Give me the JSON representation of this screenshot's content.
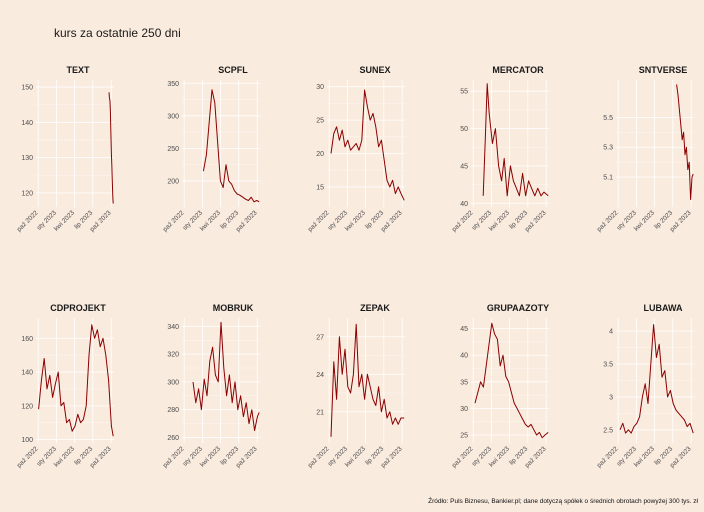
{
  "title": "kurs za ostatnie 250 dni",
  "caption": "Źródło: Puls Biznesu, Bankier.pl; dane dotyczą spółek o średnich obrotach powyżej 300 tys. zł",
  "colors": {
    "line": "#8b0000",
    "background": "#faebdf",
    "grid": "#ffffff"
  },
  "chart_data": [
    {
      "type": "line",
      "title": "TEXT",
      "ylim": [
        116,
        152
      ],
      "yticks": [
        120,
        130,
        140,
        150
      ],
      "xticks": [
        "paź 2022",
        "sty 2023",
        "kwi 2023",
        "lip 2023",
        "paź 2023"
      ],
      "x": [
        "2023-09-20",
        "2023-09-22",
        "2023-09-25",
        "2023-09-27",
        "2023-09-29",
        "2023-10-02",
        "2023-10-04",
        "2023-10-06",
        "2023-10-09",
        "2023-10-11"
      ],
      "y": [
        148.5,
        147,
        146,
        143,
        138,
        131,
        128,
        124,
        119,
        117
      ]
    },
    {
      "type": "line",
      "title": "SCPFL",
      "ylim": [
        160,
        355
      ],
      "yticks": [
        200,
        250,
        300,
        350
      ],
      "xticks": [
        "paź 2022",
        "sty 2023",
        "kwi 2023",
        "lip 2023",
        "paź 2023"
      ],
      "x": [
        "2023-01-05",
        "2023-01-20",
        "2023-02-03",
        "2023-02-17",
        "2023-03-03",
        "2023-03-17",
        "2023-03-31",
        "2023-04-14",
        "2023-04-28",
        "2023-05-12",
        "2023-05-26",
        "2023-06-09",
        "2023-06-23",
        "2023-07-07",
        "2023-07-21",
        "2023-08-04",
        "2023-08-18",
        "2023-09-01",
        "2023-09-15",
        "2023-09-29",
        "2023-10-11"
      ],
      "y": [
        215,
        240,
        290,
        340,
        320,
        260,
        200,
        190,
        225,
        200,
        195,
        185,
        180,
        178,
        175,
        172,
        170,
        175,
        168,
        170,
        168
      ]
    },
    {
      "type": "line",
      "title": "SUNEX",
      "ylim": [
        12,
        31
      ],
      "yticks": [
        15,
        20,
        25,
        30
      ],
      "xticks": [
        "paź 2022",
        "sty 2023",
        "kwi 2023",
        "lip 2023",
        "paź 2023"
      ],
      "x": [
        "2022-10-10",
        "2022-10-24",
        "2022-11-07",
        "2022-11-21",
        "2022-12-05",
        "2022-12-19",
        "2023-01-02",
        "2023-01-16",
        "2023-01-30",
        "2023-02-13",
        "2023-02-27",
        "2023-03-13",
        "2023-03-27",
        "2023-04-10",
        "2023-04-24",
        "2023-05-08",
        "2023-05-22",
        "2023-06-05",
        "2023-06-19",
        "2023-07-03",
        "2023-07-17",
        "2023-07-31",
        "2023-08-14",
        "2023-08-28",
        "2023-09-11",
        "2023-09-25",
        "2023-10-11"
      ],
      "y": [
        20,
        23,
        24,
        22,
        23.5,
        21,
        22,
        20.5,
        21,
        21.5,
        20.5,
        22,
        29.5,
        27,
        25,
        26,
        24,
        21,
        22,
        19,
        16,
        15,
        16,
        14,
        15,
        14,
        13
      ]
    },
    {
      "type": "line",
      "title": "MERCATOR",
      "ylim": [
        39.5,
        56.5
      ],
      "yticks": [
        40,
        45,
        50,
        55
      ],
      "xticks": [
        "paź 2022",
        "sty 2023",
        "kwi 2023",
        "lip 2023",
        "paź 2023"
      ],
      "x": [
        "2022-11-20",
        "2022-12-01",
        "2022-12-10",
        "2022-12-20",
        "2023-01-05",
        "2023-01-20",
        "2023-02-05",
        "2023-02-20",
        "2023-03-05",
        "2023-03-20",
        "2023-04-05",
        "2023-04-20",
        "2023-05-05",
        "2023-05-20",
        "2023-06-05",
        "2023-06-20",
        "2023-07-05",
        "2023-07-20",
        "2023-08-05",
        "2023-08-20",
        "2023-09-05",
        "2023-09-20",
        "2023-10-11"
      ],
      "y": [
        41,
        49,
        56,
        52,
        48,
        50,
        45,
        43,
        46,
        41,
        45,
        43,
        42,
        41,
        44,
        41,
        43,
        42,
        41,
        42,
        41,
        41.5,
        41
      ]
    },
    {
      "type": "line",
      "title": "SNTVERSE",
      "ylim": [
        4.9,
        5.75
      ],
      "yticks": [
        5.1,
        5.3,
        5.5
      ],
      "xticks": [
        "paź 2022",
        "sty 2023",
        "kwi 2023",
        "lip 2023",
        "paź 2023"
      ],
      "x": [
        "2023-07-20",
        "2023-07-27",
        "2023-08-03",
        "2023-08-10",
        "2023-08-17",
        "2023-08-24",
        "2023-08-31",
        "2023-09-07",
        "2023-09-14",
        "2023-09-21",
        "2023-09-28",
        "2023-10-05",
        "2023-10-11"
      ],
      "y": [
        5.72,
        5.65,
        5.55,
        5.45,
        5.35,
        5.4,
        5.25,
        5.3,
        5.15,
        5.2,
        4.95,
        5.1,
        5.12
      ]
    },
    {
      "type": "line",
      "title": "CDPROJEKT",
      "ylim": [
        98,
        172
      ],
      "yticks": [
        100,
        120,
        140,
        160
      ],
      "xticks": [
        "paź 2022",
        "sty 2023",
        "kwi 2023",
        "lip 2023",
        "paź 2023"
      ],
      "x": [
        "2022-10-03",
        "2022-10-17",
        "2022-10-31",
        "2022-11-14",
        "2022-11-28",
        "2022-12-12",
        "2022-12-26",
        "2023-01-09",
        "2023-01-23",
        "2023-02-06",
        "2023-02-20",
        "2023-03-06",
        "2023-03-20",
        "2023-04-03",
        "2023-04-17",
        "2023-05-01",
        "2023-05-15",
        "2023-05-29",
        "2023-06-12",
        "2023-06-26",
        "2023-07-10",
        "2023-07-24",
        "2023-08-07",
        "2023-08-21",
        "2023-09-04",
        "2023-09-18",
        "2023-10-02",
        "2023-10-11"
      ],
      "y": [
        118,
        135,
        148,
        130,
        138,
        125,
        133,
        140,
        120,
        122,
        110,
        112,
        105,
        108,
        115,
        110,
        112,
        120,
        150,
        168,
        160,
        165,
        155,
        160,
        150,
        135,
        108,
        102
      ]
    },
    {
      "type": "line",
      "title": "MOBRUK",
      "ylim": [
        256,
        346
      ],
      "yticks": [
        260,
        280,
        300,
        320,
        340
      ],
      "xticks": [
        "paź 2022",
        "sty 2023",
        "kwi 2023",
        "lip 2023",
        "paź 2023"
      ],
      "x": [
        "2022-11-14",
        "2022-11-28",
        "2022-12-12",
        "2022-12-26",
        "2023-01-09",
        "2023-01-23",
        "2023-02-06",
        "2023-02-20",
        "2023-03-06",
        "2023-03-20",
        "2023-04-03",
        "2023-04-17",
        "2023-05-01",
        "2023-05-15",
        "2023-05-29",
        "2023-06-12",
        "2023-06-26",
        "2023-07-10",
        "2023-07-24",
        "2023-08-07",
        "2023-08-21",
        "2023-09-04",
        "2023-09-18",
        "2023-10-02",
        "2023-10-11"
      ],
      "y": [
        300,
        285,
        295,
        280,
        302,
        290,
        315,
        325,
        305,
        300,
        343,
        310,
        290,
        305,
        285,
        300,
        280,
        290,
        275,
        285,
        270,
        280,
        265,
        275,
        278
      ]
    },
    {
      "type": "line",
      "title": "ZEPAK",
      "ylim": [
        18.5,
        28.5
      ],
      "yticks": [
        21,
        24,
        27
      ],
      "xticks": [
        "paź 2022",
        "sty 2023",
        "kwi 2023",
        "lip 2023",
        "paź 2023"
      ],
      "x": [
        "2022-10-10",
        "2022-10-24",
        "2022-11-07",
        "2022-11-21",
        "2022-12-05",
        "2022-12-19",
        "2023-01-02",
        "2023-01-16",
        "2023-01-30",
        "2023-02-13",
        "2023-02-27",
        "2023-03-13",
        "2023-03-27",
        "2023-04-10",
        "2023-04-24",
        "2023-05-08",
        "2023-05-22",
        "2023-06-05",
        "2023-06-19",
        "2023-07-03",
        "2023-07-17",
        "2023-07-31",
        "2023-08-14",
        "2023-08-28",
        "2023-09-11",
        "2023-09-25",
        "2023-10-11"
      ],
      "y": [
        19,
        25,
        22,
        27,
        24,
        26,
        23,
        22.5,
        24,
        28,
        23,
        24,
        22,
        24,
        23,
        22,
        21.5,
        23,
        21,
        22,
        20.5,
        21,
        20,
        20.5,
        20,
        20.5,
        20.5
      ]
    },
    {
      "type": "line",
      "title": "GRUPAAZOTY",
      "ylim": [
        23.5,
        47
      ],
      "yticks": [
        25,
        30,
        35,
        40,
        45
      ],
      "xticks": [
        "paź 2022",
        "sty 2023",
        "kwi 2023",
        "lip 2023",
        "paź 2023"
      ],
      "x": [
        "2022-10-10",
        "2022-10-24",
        "2022-11-07",
        "2022-11-21",
        "2022-12-05",
        "2022-12-19",
        "2023-01-02",
        "2023-01-16",
        "2023-01-30",
        "2023-02-13",
        "2023-02-27",
        "2023-03-13",
        "2023-03-27",
        "2023-04-10",
        "2023-04-24",
        "2023-05-08",
        "2023-05-22",
        "2023-06-05",
        "2023-06-19",
        "2023-07-03",
        "2023-07-17",
        "2023-07-31",
        "2023-08-14",
        "2023-08-28",
        "2023-09-11",
        "2023-09-25",
        "2023-10-11"
      ],
      "y": [
        31,
        33,
        35,
        34,
        38,
        42,
        46,
        44,
        43,
        38,
        40,
        36,
        35,
        33,
        31,
        30,
        29,
        28,
        27,
        26.5,
        27,
        26,
        25,
        25.5,
        24.5,
        25,
        25.5
      ]
    },
    {
      "type": "line",
      "title": "LUBAWA",
      "ylim": [
        2.3,
        4.2
      ],
      "yticks": [
        2.5,
        3.0,
        3.5,
        4.0
      ],
      "xticks": [
        "paź 2022",
        "sty 2023",
        "kwi 2023",
        "lip 2023",
        "paź 2023"
      ],
      "x": [
        "2022-10-10",
        "2022-10-24",
        "2022-11-07",
        "2022-11-21",
        "2022-12-05",
        "2022-12-19",
        "2023-01-02",
        "2023-01-16",
        "2023-01-30",
        "2023-02-13",
        "2023-02-27",
        "2023-03-13",
        "2023-03-27",
        "2023-04-10",
        "2023-04-24",
        "2023-05-08",
        "2023-05-22",
        "2023-06-05",
        "2023-06-19",
        "2023-07-03",
        "2023-07-17",
        "2023-07-31",
        "2023-08-14",
        "2023-08-28",
        "2023-09-11",
        "2023-09-25",
        "2023-10-11"
      ],
      "y": [
        2.5,
        2.6,
        2.45,
        2.5,
        2.45,
        2.55,
        2.6,
        2.7,
        3.0,
        3.2,
        2.9,
        3.5,
        4.1,
        3.6,
        3.8,
        3.3,
        3.4,
        3.0,
        3.1,
        2.9,
        2.8,
        2.75,
        2.7,
        2.65,
        2.55,
        2.6,
        2.45
      ]
    }
  ]
}
